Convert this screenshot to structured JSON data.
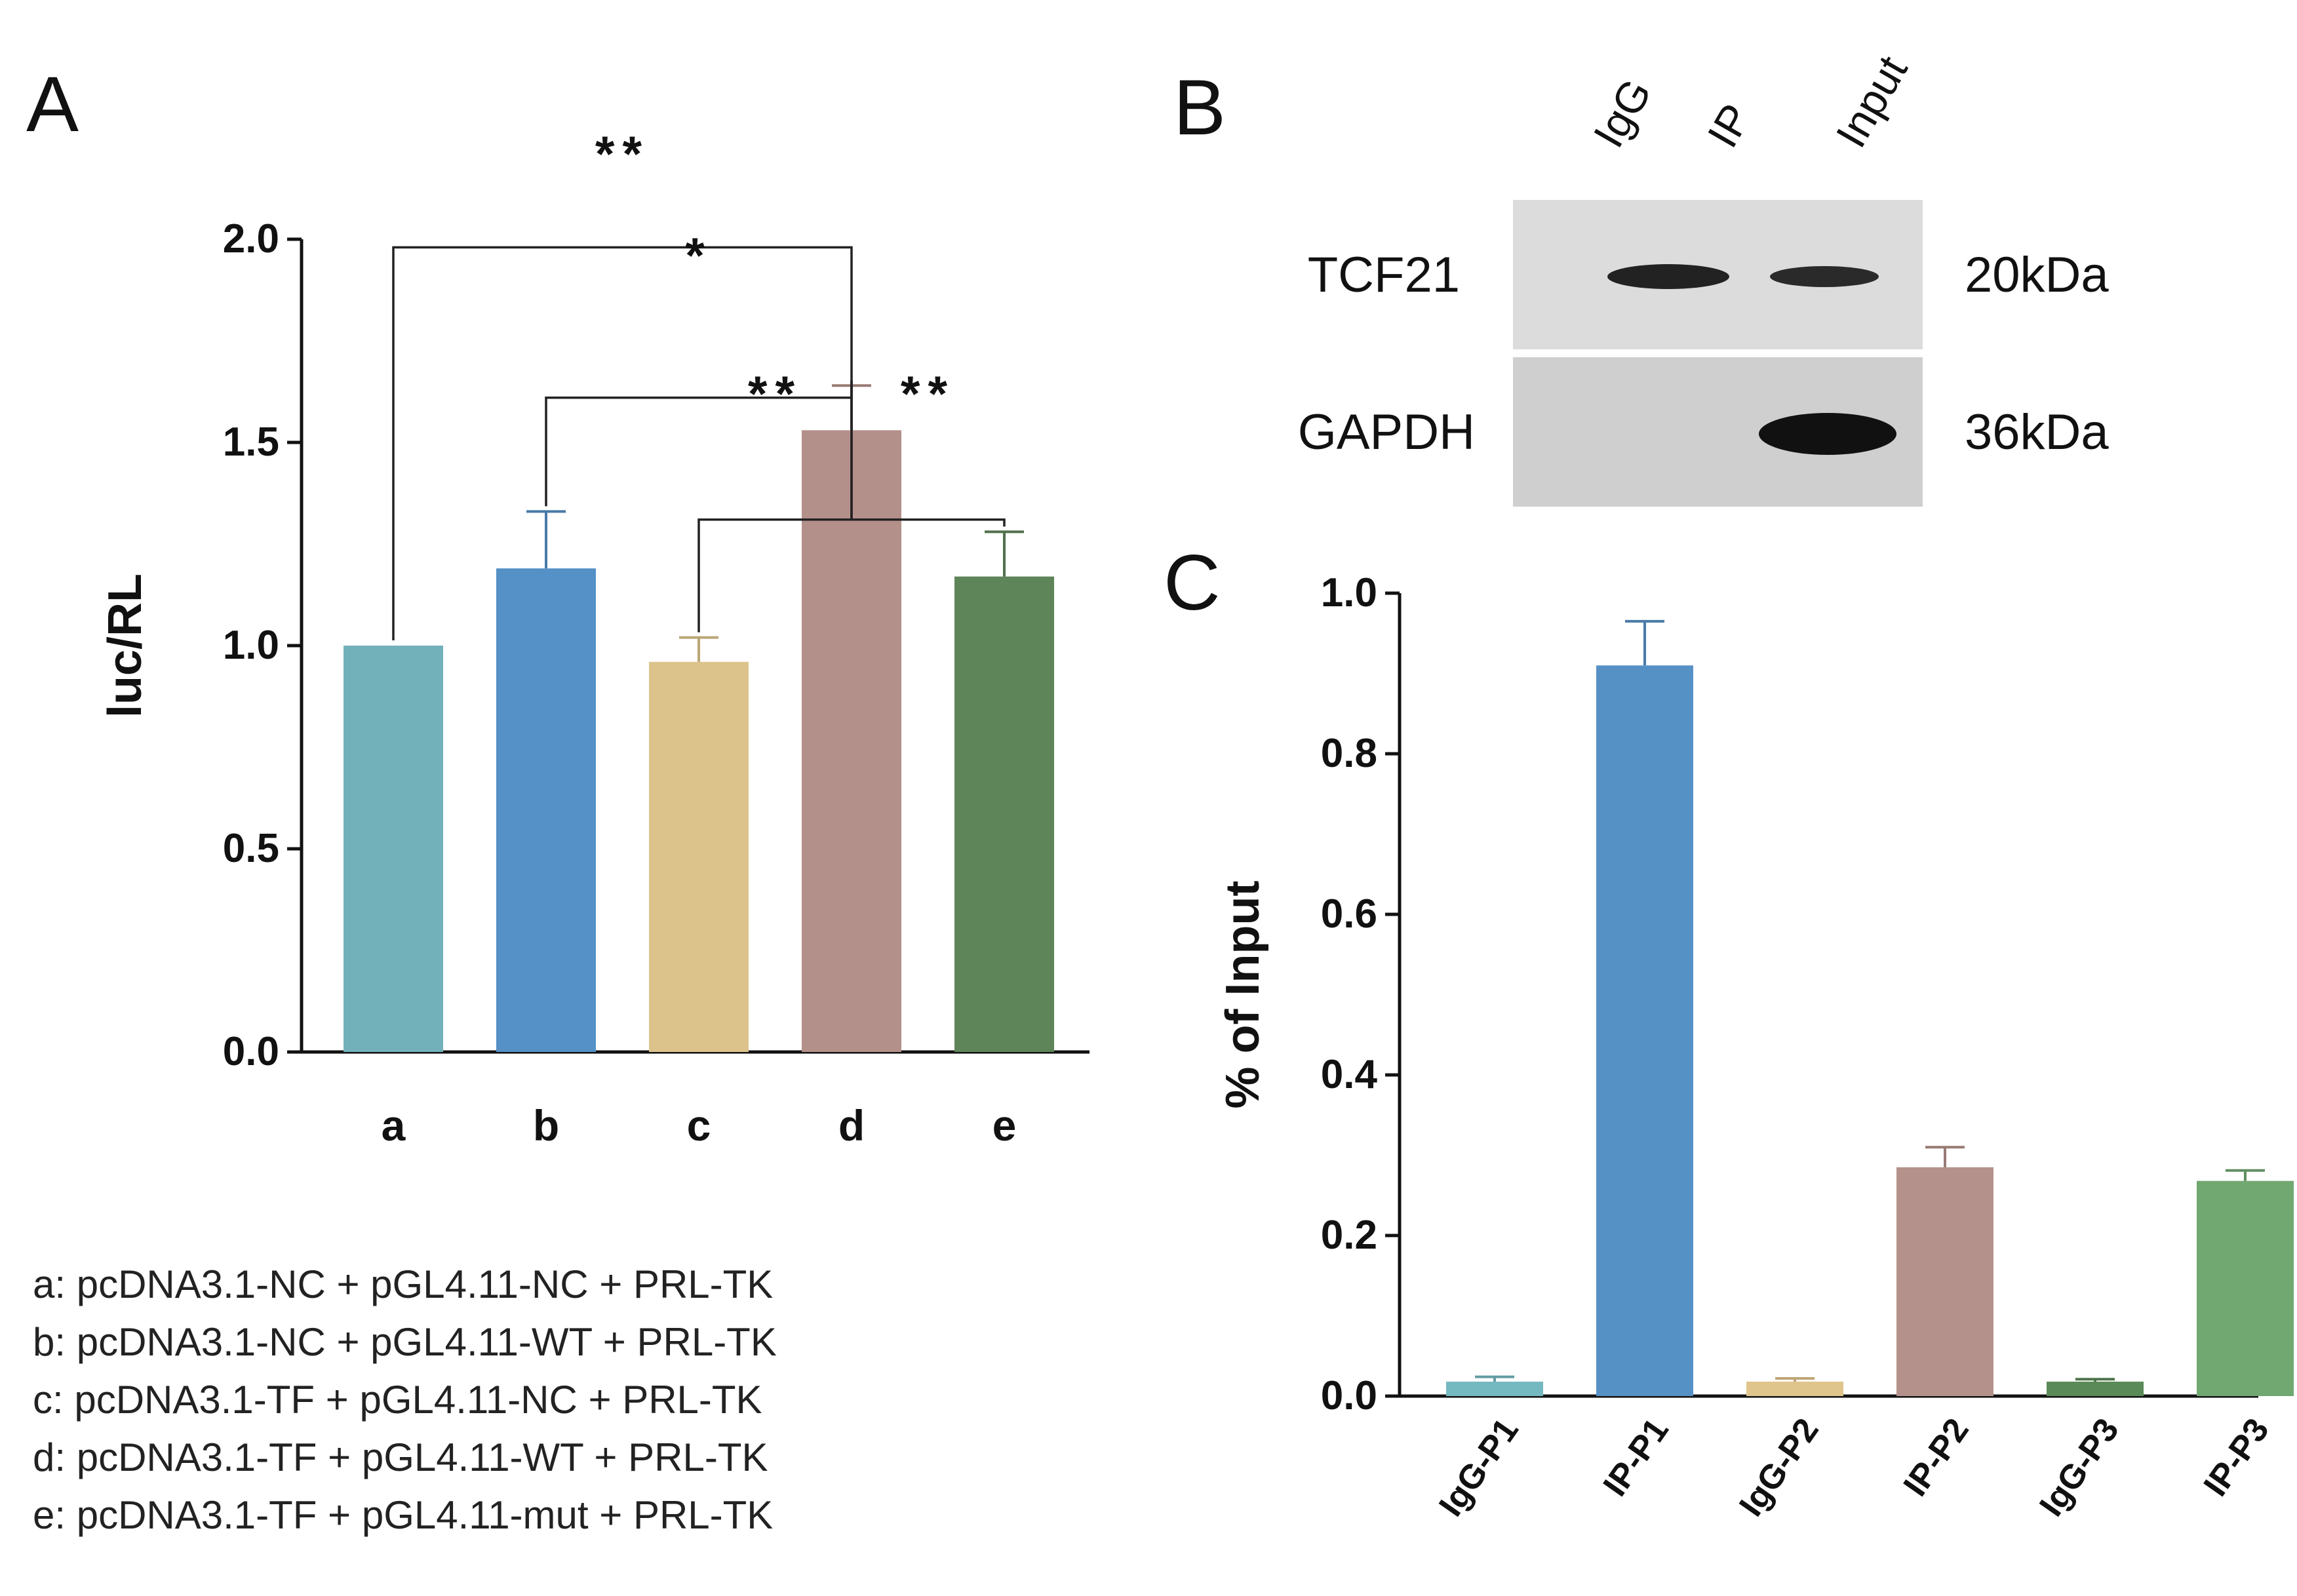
{
  "figure": {
    "panels": {
      "A": {
        "letter": "A"
      },
      "B": {
        "letter": "B"
      },
      "C": {
        "letter": "C"
      }
    },
    "legend": [
      "a:  pcDNA3.1-NC + pGL4.11-NC + PRL-TK",
      "b:  pcDNA3.1-NC + pGL4.11-WT + PRL-TK",
      "c:  pcDNA3.1-TF + pGL4.11-NC + PRL-TK",
      "d:  pcDNA3.1-TF + pGL4.11-WT + PRL-TK",
      "e:  pcDNA3.1-TF + pGL4.11-mut + PRL-TK"
    ],
    "blot": {
      "lanes": [
        "IgG",
        "IP",
        "Input"
      ],
      "rows": [
        {
          "protein": "TCF21",
          "size": "20kDa"
        },
        {
          "protein": "GAPDH",
          "size": "36kDa"
        }
      ]
    }
  },
  "chart_data": [
    {
      "panel": "A",
      "type": "bar",
      "title": "",
      "xlabel": "",
      "ylabel": "luc/RL",
      "ylim": [
        0,
        2.0
      ],
      "yticks": [
        0.0,
        0.5,
        1.0,
        1.5,
        2.0
      ],
      "ytick_labels": [
        "0.0",
        "0.5",
        "1.0",
        "1.5",
        "2.0"
      ],
      "categories": [
        "a",
        "b",
        "c",
        "d",
        "e"
      ],
      "values": [
        1.0,
        1.19,
        0.96,
        1.53,
        1.17
      ],
      "errors": [
        0.0,
        0.14,
        0.06,
        0.11,
        0.11
      ],
      "colors": [
        "#72b1b9",
        "#5590c6",
        "#dcc38c",
        "#b4908a",
        "#5e8459"
      ],
      "significance": [
        {
          "from": "a",
          "to": "d",
          "label": "**"
        },
        {
          "from": "b",
          "to": "d",
          "label": "*"
        },
        {
          "from": "c",
          "to": "d",
          "label": "**"
        },
        {
          "from": "d",
          "to": "e",
          "label": "**"
        }
      ]
    },
    {
      "panel": "C",
      "type": "bar",
      "title": "",
      "xlabel": "",
      "ylabel": "% of Input",
      "ylim": [
        0,
        1.0
      ],
      "yticks": [
        0.0,
        0.2,
        0.4,
        0.6,
        0.8,
        1.0
      ],
      "ytick_labels": [
        "0.0",
        "0.2",
        "0.4",
        "0.6",
        "0.8",
        "1.0"
      ],
      "categories": [
        "IgG-P1",
        "IP-P1",
        "IgG-P2",
        "IP-P2",
        "IgG-P3",
        "IP-P3"
      ],
      "values": [
        0.018,
        0.91,
        0.018,
        0.285,
        0.018,
        0.268
      ],
      "errors": [
        0.006,
        0.055,
        0.004,
        0.025,
        0.003,
        0.013
      ],
      "colors": [
        "#74b8c0",
        "#5691c6",
        "#dfc58c",
        "#b4918a",
        "#5a8a57",
        "#71a871"
      ]
    }
  ]
}
